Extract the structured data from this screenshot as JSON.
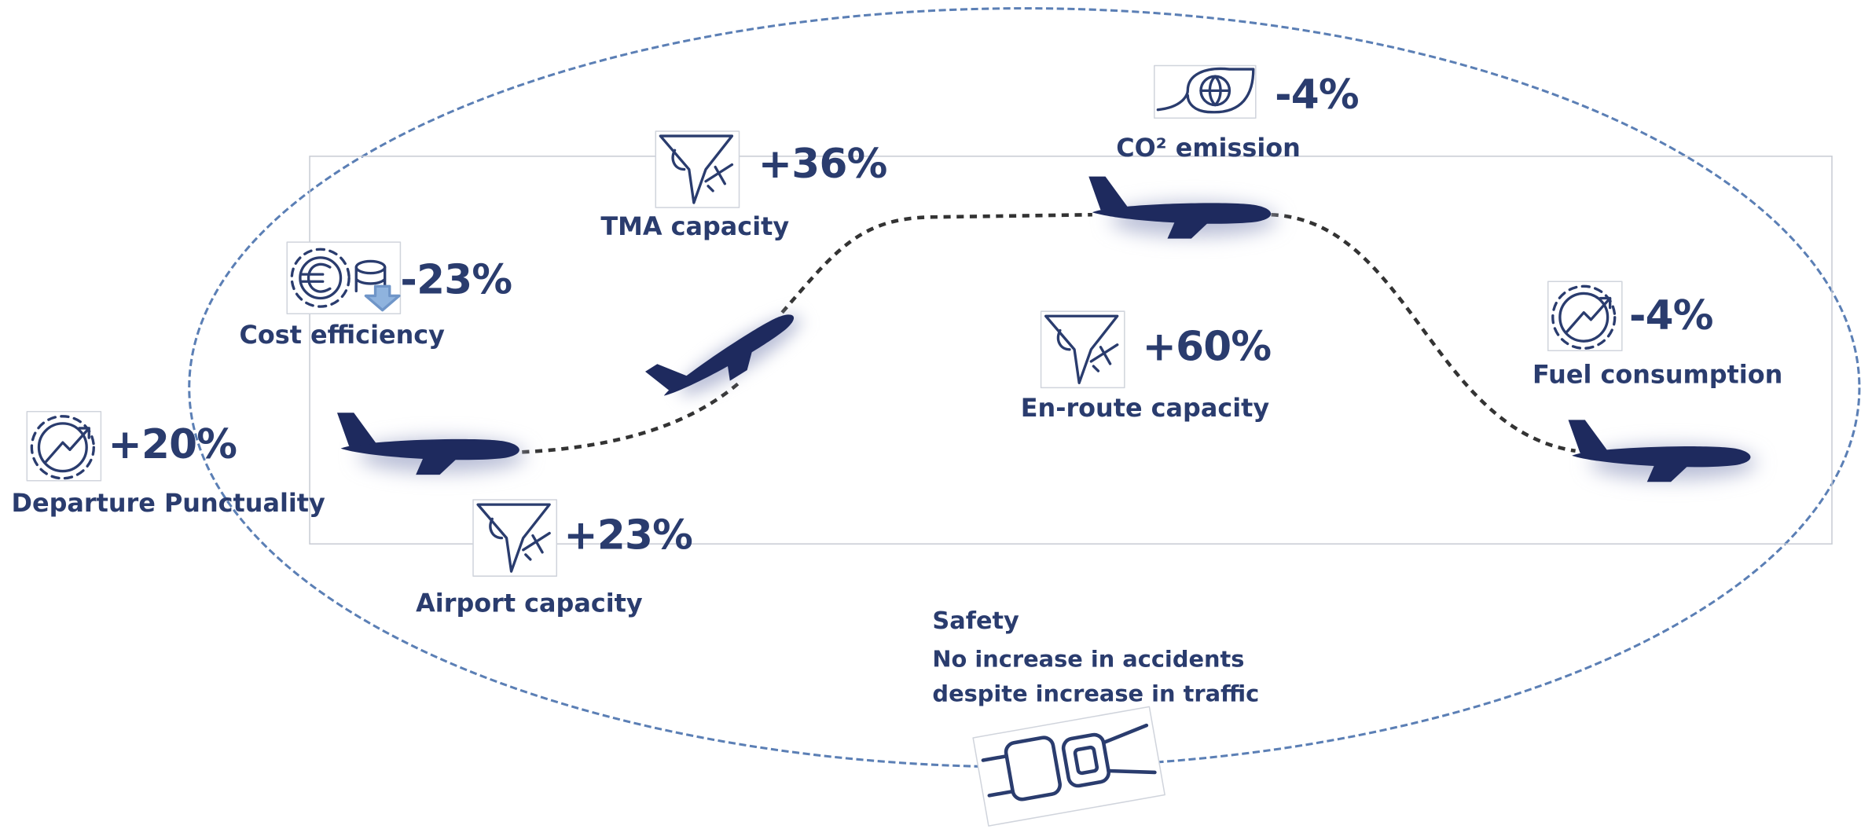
{
  "items": [
    {
      "value": "+20%",
      "label": "Departure Punctuality"
    },
    {
      "value": "-23%",
      "label": "Cost efficiency"
    },
    {
      "value": "+36%",
      "label": "TMA capacity"
    },
    {
      "value": "+23%",
      "label": "Airport capacity"
    },
    {
      "value": "-4%",
      "label": "CO² emission"
    },
    {
      "value": "+60%",
      "label": "En-route capacity"
    },
    {
      "value": "-4%",
      "label": "Fuel consumption"
    }
  ],
  "safety": {
    "title": "Safety",
    "lines": [
      "No increase in accidents",
      "despite increase in traffic"
    ]
  }
}
